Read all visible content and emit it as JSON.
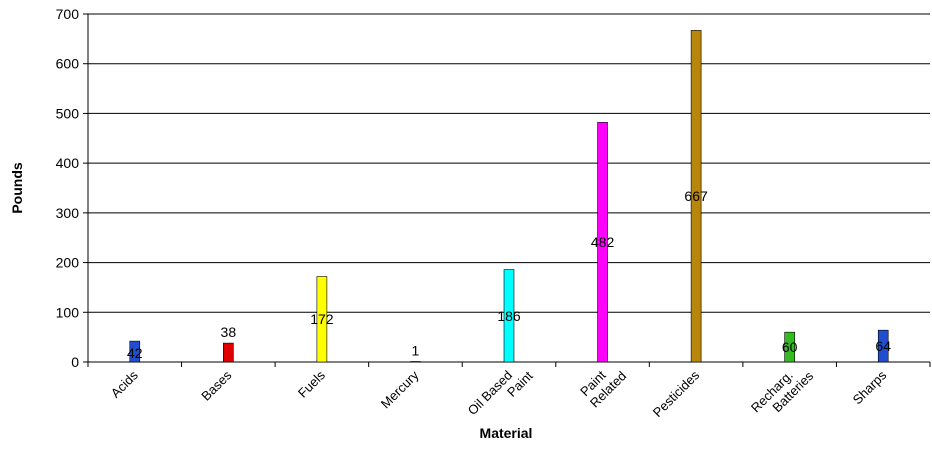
{
  "chart_data": {
    "type": "bar",
    "xlabel": "Material",
    "ylabel": "Pounds",
    "ylim": [
      0,
      700
    ],
    "yticks": [
      0,
      100,
      200,
      300,
      400,
      500,
      600,
      700
    ],
    "grid": true,
    "categories": [
      "Acids",
      "Bases",
      "Fuels",
      "Mercury",
      "Oil Based Paint",
      "Paint Related",
      "Pesticides",
      "Recharg. Batteries",
      "Sharps"
    ],
    "category_lines": [
      [
        "Acids"
      ],
      [
        "Bases"
      ],
      [
        "Fuels"
      ],
      [
        "Mercury"
      ],
      [
        "Oil Based",
        "Paint"
      ],
      [
        "Paint",
        "Related"
      ],
      [
        "Pesticides"
      ],
      [
        "Recharg.",
        "Batteries"
      ],
      [
        "Sharps"
      ]
    ],
    "values": [
      42,
      38,
      172,
      1,
      186,
      482,
      667,
      60,
      64
    ],
    "data_labels": [
      "42",
      "38",
      "172",
      "1",
      "186",
      "482",
      "667",
      "60",
      "64"
    ],
    "colors": [
      "#1f4fcf",
      "#e00000",
      "#ffff00",
      "#1f4fcf",
      "#00ffff",
      "#ff00ff",
      "#b8860b",
      "#33bb22",
      "#1f4fcf"
    ]
  }
}
